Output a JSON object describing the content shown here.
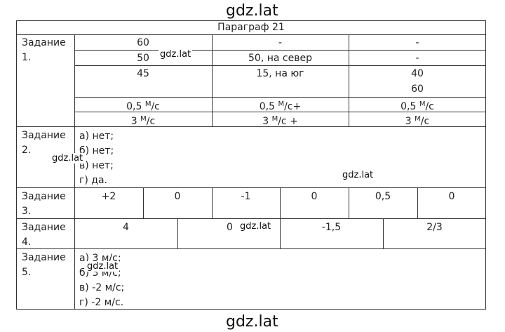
{
  "watermark": "gdz.lat",
  "header": {
    "title": "Параграф 21"
  },
  "tasks": {
    "t1": {
      "label_line1": "Задание",
      "label_line2": "1.",
      "r1": [
        "60",
        "-",
        "-"
      ],
      "r2": [
        "50",
        "50, на север",
        "-"
      ],
      "r3": [
        "45",
        "15, на юг",
        "40"
      ],
      "r3b": "60",
      "r4": [
        {
          "num": "0,5",
          "unit_top": "М",
          "unit_bottom": "/с",
          "suffix": ""
        },
        {
          "num": "0,5",
          "unit_top": "М",
          "unit_bottom": "/с",
          "suffix": "+"
        },
        {
          "num": "0,5",
          "unit_top": "М",
          "unit_bottom": "/с",
          "suffix": ""
        }
      ],
      "r5": [
        {
          "num": "3",
          "unit_top": "М",
          "unit_bottom": "/с",
          "suffix": ""
        },
        {
          "num": "3",
          "unit_top": "М",
          "unit_bottom": "/с",
          "suffix": " +"
        },
        {
          "num": "3",
          "unit_top": "М",
          "unit_bottom": "/с",
          "suffix": ""
        }
      ]
    },
    "t2": {
      "label_line1": "Задание",
      "label_line2": "2.",
      "answers": [
        "а) нет;",
        "б) нет;",
        "в) нет;",
        "г) да."
      ]
    },
    "t3": {
      "label_line1": "Задание",
      "label_line2": "3.",
      "values": [
        "+2",
        "0",
        "-1",
        "0",
        "0,5",
        "0"
      ]
    },
    "t4": {
      "label_line1": "Задание",
      "label_line2": "4.",
      "values": [
        "4",
        "0",
        "-1,5",
        "2/3"
      ]
    },
    "t5": {
      "label_line1": "Задание",
      "label_line2": "5.",
      "answers": [
        "а) 3 м/с;",
        "б) 3 м/с;",
        "в) -2 м/с;",
        "г) -2 м/с."
      ]
    }
  }
}
